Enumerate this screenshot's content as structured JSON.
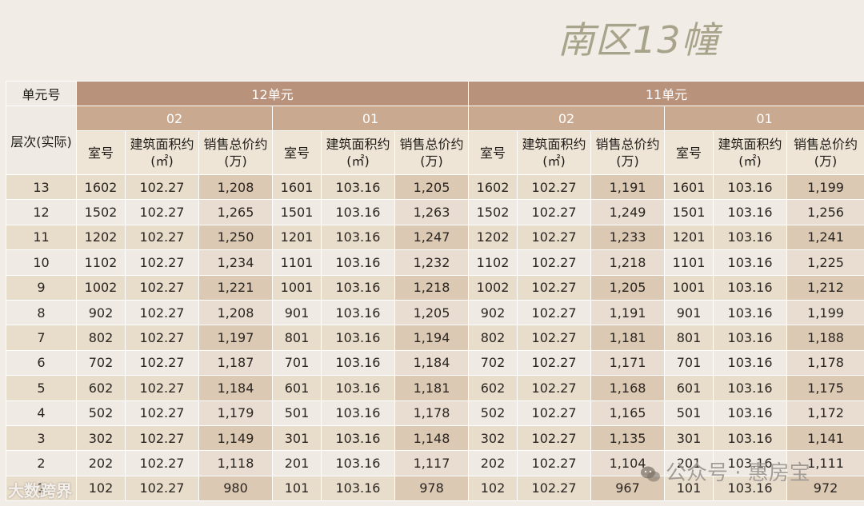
{
  "title": "南区13幢",
  "labels": {
    "unit_no": "单元号",
    "floor": "层次(实际)"
  },
  "units": [
    {
      "name": "12单元",
      "rooms": [
        "02",
        "01"
      ]
    },
    {
      "name": "11单元",
      "rooms": [
        "02",
        "01"
      ]
    }
  ],
  "col_headers": {
    "room": "室号",
    "area_l1": "建筑面积约",
    "area_l2": "(㎡)",
    "price_l1": "销售总价约",
    "price_l2": "(万)"
  },
  "rows": [
    {
      "floor": "13",
      "cells": [
        [
          "1602",
          "102.27",
          "1,208"
        ],
        [
          "1601",
          "103.16",
          "1,205"
        ],
        [
          "1602",
          "102.27",
          "1,191"
        ],
        [
          "1601",
          "103.16",
          "1,199"
        ]
      ]
    },
    {
      "floor": "12",
      "cells": [
        [
          "1502",
          "102.27",
          "1,265"
        ],
        [
          "1501",
          "103.16",
          "1,263"
        ],
        [
          "1502",
          "102.27",
          "1,249"
        ],
        [
          "1501",
          "103.16",
          "1,256"
        ]
      ]
    },
    {
      "floor": "11",
      "cells": [
        [
          "1202",
          "102.27",
          "1,250"
        ],
        [
          "1201",
          "103.16",
          "1,247"
        ],
        [
          "1202",
          "102.27",
          "1,233"
        ],
        [
          "1201",
          "103.16",
          "1,241"
        ]
      ]
    },
    {
      "floor": "10",
      "cells": [
        [
          "1102",
          "102.27",
          "1,234"
        ],
        [
          "1101",
          "103.16",
          "1,232"
        ],
        [
          "1102",
          "102.27",
          "1,218"
        ],
        [
          "1101",
          "103.16",
          "1,225"
        ]
      ]
    },
    {
      "floor": "9",
      "cells": [
        [
          "1002",
          "102.27",
          "1,221"
        ],
        [
          "1001",
          "103.16",
          "1,218"
        ],
        [
          "1002",
          "102.27",
          "1,205"
        ],
        [
          "1001",
          "103.16",
          "1,212"
        ]
      ]
    },
    {
      "floor": "8",
      "cells": [
        [
          "902",
          "102.27",
          "1,208"
        ],
        [
          "901",
          "103.16",
          "1,205"
        ],
        [
          "902",
          "102.27",
          "1,191"
        ],
        [
          "901",
          "103.16",
          "1,199"
        ]
      ]
    },
    {
      "floor": "7",
      "cells": [
        [
          "802",
          "102.27",
          "1,197"
        ],
        [
          "801",
          "103.16",
          "1,194"
        ],
        [
          "802",
          "102.27",
          "1,181"
        ],
        [
          "801",
          "103.16",
          "1,188"
        ]
      ]
    },
    {
      "floor": "6",
      "cells": [
        [
          "702",
          "102.27",
          "1,187"
        ],
        [
          "701",
          "103.16",
          "1,184"
        ],
        [
          "702",
          "102.27",
          "1,171"
        ],
        [
          "701",
          "103.16",
          "1,178"
        ]
      ]
    },
    {
      "floor": "5",
      "cells": [
        [
          "602",
          "102.27",
          "1,184"
        ],
        [
          "601",
          "103.16",
          "1,181"
        ],
        [
          "602",
          "102.27",
          "1,168"
        ],
        [
          "601",
          "103.16",
          "1,175"
        ]
      ]
    },
    {
      "floor": "4",
      "cells": [
        [
          "502",
          "102.27",
          "1,179"
        ],
        [
          "501",
          "103.16",
          "1,178"
        ],
        [
          "502",
          "102.27",
          "1,165"
        ],
        [
          "501",
          "103.16",
          "1,172"
        ]
      ]
    },
    {
      "floor": "3",
      "cells": [
        [
          "302",
          "102.27",
          "1,149"
        ],
        [
          "301",
          "103.16",
          "1,148"
        ],
        [
          "302",
          "102.27",
          "1,135"
        ],
        [
          "301",
          "103.16",
          "1,141"
        ]
      ]
    },
    {
      "floor": "2",
      "cells": [
        [
          "202",
          "102.27",
          "1,118"
        ],
        [
          "201",
          "103.16",
          "1,117"
        ],
        [
          "202",
          "102.27",
          "1,104"
        ],
        [
          "201",
          "103.16",
          "1,111"
        ]
      ]
    },
    {
      "floor": "1",
      "cells": [
        [
          "102",
          "102.27",
          "980"
        ],
        [
          "101",
          "103.16",
          "978"
        ],
        [
          "102",
          "102.27",
          "967"
        ],
        [
          "101",
          "103.16",
          "972"
        ]
      ]
    }
  ],
  "watermarks": {
    "left": "大数跨界",
    "right": "公众号 · 惠房宝"
  },
  "colors": {
    "unit_header": "#b8927a",
    "room_header": "#c9a98f",
    "title": "#a8a48c"
  },
  "icons": {
    "wechat": "wechat-icon"
  }
}
